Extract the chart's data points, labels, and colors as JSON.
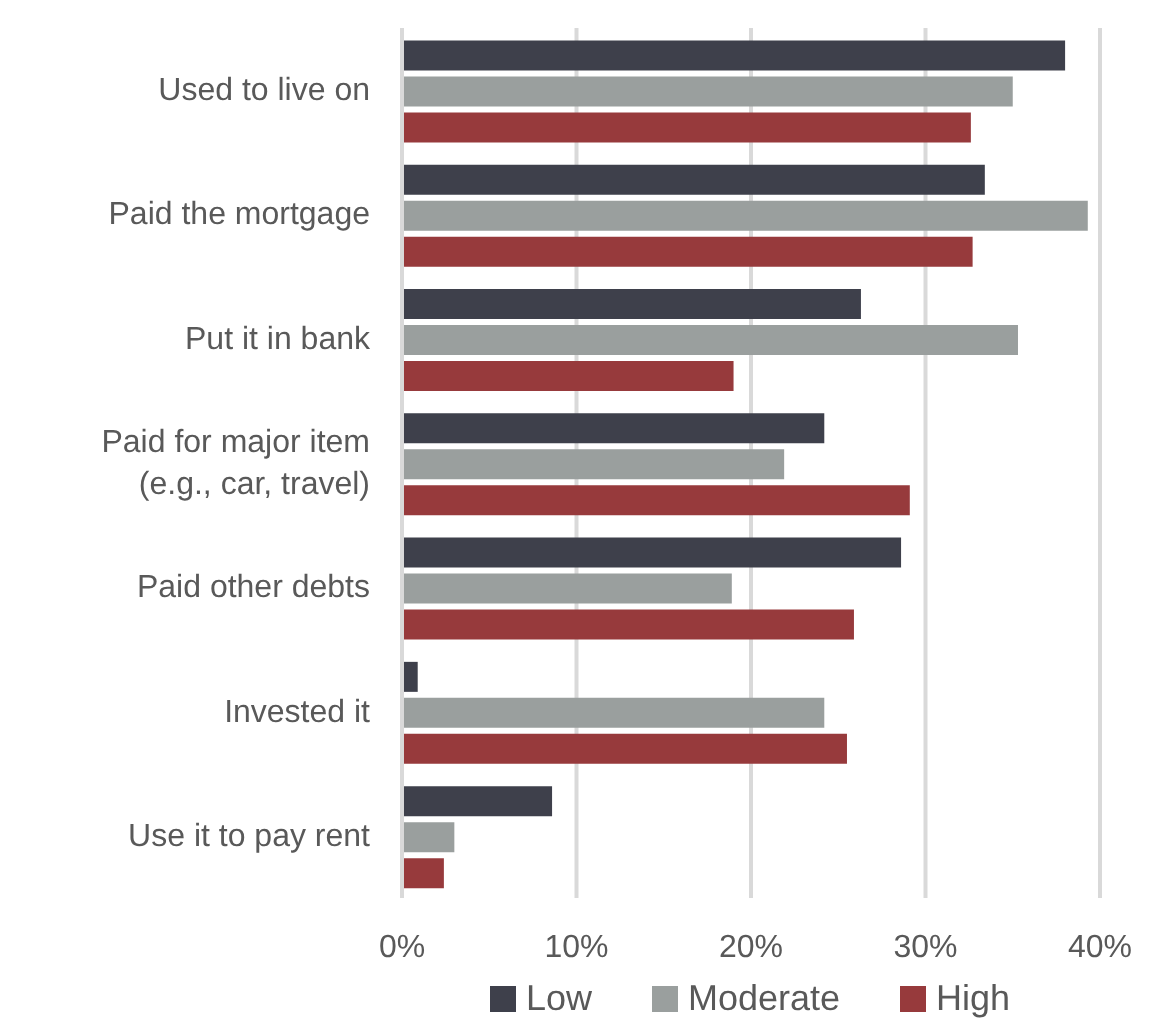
{
  "chart_data": {
    "type": "bar",
    "orientation": "horizontal",
    "categories": [
      "Used to live on",
      "Paid the mortgage",
      "Put it in bank",
      "Paid for major item (e.g., car, travel)",
      "Paid other debts",
      "Invested it",
      "Use it to pay rent"
    ],
    "series": [
      {
        "name": "Low",
        "color": "#3e404b",
        "values": [
          38.0,
          33.4,
          26.3,
          24.2,
          28.6,
          0.9,
          8.6
        ]
      },
      {
        "name": "Moderate",
        "color": "#9a9f9e",
        "values": [
          35.0,
          39.3,
          35.3,
          21.9,
          18.9,
          24.2,
          3.0
        ]
      },
      {
        "name": "High",
        "color": "#973a3c",
        "values": [
          32.6,
          32.7,
          19.0,
          29.1,
          25.9,
          25.5,
          2.4
        ]
      }
    ],
    "xlim": [
      0,
      40
    ],
    "xticks": [
      {
        "value": 0,
        "label": "0%"
      },
      {
        "value": 10,
        "label": "10%"
      },
      {
        "value": 20,
        "label": "20%"
      },
      {
        "value": 30,
        "label": "30%"
      },
      {
        "value": 40,
        "label": "40%"
      }
    ],
    "grid": "x",
    "legend": "bottom"
  }
}
